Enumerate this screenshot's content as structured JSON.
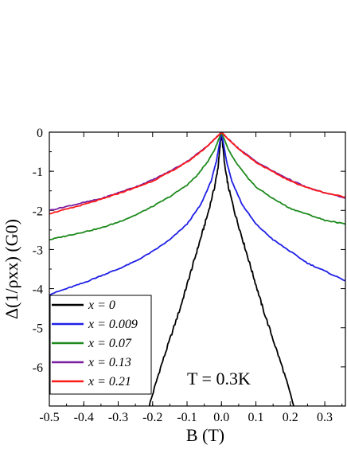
{
  "chart_data": {
    "type": "line",
    "xlabel": "B (T)",
    "ylabel": "Δ(1/ρxx) (G0)",
    "xlim": [
      -0.5,
      0.36
    ],
    "ylim": [
      -7,
      0
    ],
    "xticks": [
      "-0.5",
      "-0.4",
      "-0.3",
      "-0.2",
      "-0.1",
      "0.0",
      "0.1",
      "0.2",
      "0.3"
    ],
    "yticks": [
      "0",
      "-1",
      "-2",
      "-3",
      "-4",
      "-5",
      "-6"
    ],
    "annotation": "T = 0.3K",
    "legend_position": "bottom-left",
    "series": [
      {
        "name": "x = 0",
        "color": "#000000",
        "x": [
          -0.21,
          -0.18,
          -0.15,
          -0.12,
          -0.1,
          -0.08,
          -0.06,
          -0.04,
          -0.02,
          -0.01,
          0.0,
          0.01,
          0.02,
          0.04,
          0.06,
          0.08,
          0.1,
          0.12,
          0.15,
          0.18,
          0.21
        ],
        "y": [
          -7.0,
          -6.1,
          -5.3,
          -4.5,
          -3.9,
          -3.3,
          -2.7,
          -2.1,
          -1.4,
          -0.9,
          0.0,
          -0.9,
          -1.4,
          -2.1,
          -2.7,
          -3.3,
          -3.9,
          -4.5,
          -5.3,
          -6.1,
          -7.0
        ]
      },
      {
        "name": "x = 0.009",
        "color": "#1f1fe6",
        "x": [
          -0.5,
          -0.45,
          -0.4,
          -0.35,
          -0.3,
          -0.25,
          -0.2,
          -0.15,
          -0.1,
          -0.06,
          -0.03,
          -0.015,
          0.0,
          0.015,
          0.03,
          0.06,
          0.1,
          0.15,
          0.2,
          0.25,
          0.3,
          0.36
        ],
        "y": [
          -4.15,
          -4.0,
          -3.85,
          -3.67,
          -3.5,
          -3.3,
          -3.05,
          -2.75,
          -2.35,
          -1.85,
          -1.25,
          -0.75,
          0.0,
          -0.75,
          -1.25,
          -1.85,
          -2.35,
          -2.75,
          -3.05,
          -3.35,
          -3.55,
          -3.8
        ]
      },
      {
        "name": "x = 0.07",
        "color": "#1e8a1e",
        "x": [
          -0.5,
          -0.45,
          -0.4,
          -0.35,
          -0.3,
          -0.25,
          -0.2,
          -0.15,
          -0.1,
          -0.07,
          -0.04,
          -0.02,
          0.0,
          0.02,
          0.04,
          0.07,
          0.1,
          0.15,
          0.2,
          0.25,
          0.3,
          0.36
        ],
        "y": [
          -2.75,
          -2.65,
          -2.55,
          -2.45,
          -2.3,
          -2.12,
          -1.9,
          -1.65,
          -1.35,
          -1.1,
          -0.75,
          -0.45,
          0.0,
          -0.45,
          -0.75,
          -1.1,
          -1.4,
          -1.7,
          -1.95,
          -2.1,
          -2.25,
          -2.35
        ]
      },
      {
        "name": "x = 0.13",
        "color": "#7a1fa0",
        "x": [
          -0.5,
          -0.45,
          -0.4,
          -0.35,
          -0.3,
          -0.25,
          -0.2,
          -0.15,
          -0.1,
          -0.05,
          -0.02,
          0.0,
          0.02,
          0.05,
          0.1,
          0.15,
          0.2,
          0.25,
          0.3,
          0.36
        ],
        "y": [
          -2.0,
          -1.9,
          -1.8,
          -1.7,
          -1.55,
          -1.4,
          -1.22,
          -1.0,
          -0.75,
          -0.42,
          -0.18,
          0.0,
          -0.18,
          -0.42,
          -0.75,
          -1.0,
          -1.22,
          -1.42,
          -1.55,
          -1.68
        ]
      },
      {
        "name": "x = 0.21",
        "color": "#ff1a1a",
        "x": [
          -0.5,
          -0.45,
          -0.4,
          -0.35,
          -0.3,
          -0.25,
          -0.2,
          -0.15,
          -0.1,
          -0.05,
          -0.02,
          0.0,
          0.02,
          0.05,
          0.1,
          0.15,
          0.2,
          0.25,
          0.3,
          0.36
        ],
        "y": [
          -2.08,
          -1.97,
          -1.85,
          -1.72,
          -1.57,
          -1.42,
          -1.25,
          -1.02,
          -0.77,
          -0.43,
          -0.18,
          0.0,
          -0.18,
          -0.43,
          -0.77,
          -1.02,
          -1.25,
          -1.42,
          -1.55,
          -1.66
        ]
      }
    ]
  }
}
